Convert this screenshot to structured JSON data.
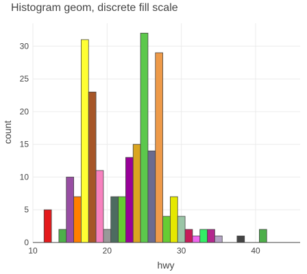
{
  "chart_data": {
    "type": "bar",
    "title": "Histogram geom, discrete fill scale",
    "xlabel": "hwy",
    "ylabel": "count",
    "xlim": [
      10,
      46
    ],
    "ylim": [
      0,
      33.5
    ],
    "x_ticks": [
      10,
      20,
      30,
      40
    ],
    "y_ticks": [
      0,
      5,
      10,
      15,
      20,
      25,
      30
    ],
    "grid": true,
    "bin_width": 1,
    "bars": [
      {
        "x": 12,
        "count": 5,
        "fill": "#e41a1c"
      },
      {
        "x": 14,
        "count": 2,
        "fill": "#4daf4a"
      },
      {
        "x": 15,
        "count": 10,
        "fill": "#984ea3"
      },
      {
        "x": 16,
        "count": 7,
        "fill": "#ff7f00"
      },
      {
        "x": 17,
        "count": 31,
        "fill": "#ffff33"
      },
      {
        "x": 18,
        "count": 23,
        "fill": "#a65628"
      },
      {
        "x": 19,
        "count": 11,
        "fill": "#f781bf"
      },
      {
        "x": 20,
        "count": 2,
        "fill": "#999999"
      },
      {
        "x": 21,
        "count": 7,
        "fill": "#4d6b60"
      },
      {
        "x": 22,
        "count": 7,
        "fill": "#66cc33"
      },
      {
        "x": 23,
        "count": 13,
        "fill": "#990099"
      },
      {
        "x": 24,
        "count": 15,
        "fill": "#daa520"
      },
      {
        "x": 25,
        "count": 32,
        "fill": "#5cc84c"
      },
      {
        "x": 26,
        "count": 14,
        "fill": "#6b6b8f"
      },
      {
        "x": 27,
        "count": 29,
        "fill": "#ee9a49"
      },
      {
        "x": 28,
        "count": 4,
        "fill": "#66cc33"
      },
      {
        "x": 29,
        "count": 7,
        "fill": "#e5e800"
      },
      {
        "x": 30,
        "count": 4,
        "fill": "#9ac5a6"
      },
      {
        "x": 31,
        "count": 2,
        "fill": "#c71d5a"
      },
      {
        "x": 32,
        "count": 1,
        "fill": "#ee66ee"
      },
      {
        "x": 33,
        "count": 2,
        "fill": "#33ee66"
      },
      {
        "x": 34,
        "count": 2,
        "fill": "#b3288e"
      },
      {
        "x": 35,
        "count": 1,
        "fill": "#b3a3c3"
      },
      {
        "x": 37,
        "count": 0,
        "fill": "#888888"
      },
      {
        "x": 38,
        "count": 1,
        "fill": "#444444"
      },
      {
        "x": 41,
        "count": 2,
        "fill": "#4daf4a"
      }
    ]
  }
}
